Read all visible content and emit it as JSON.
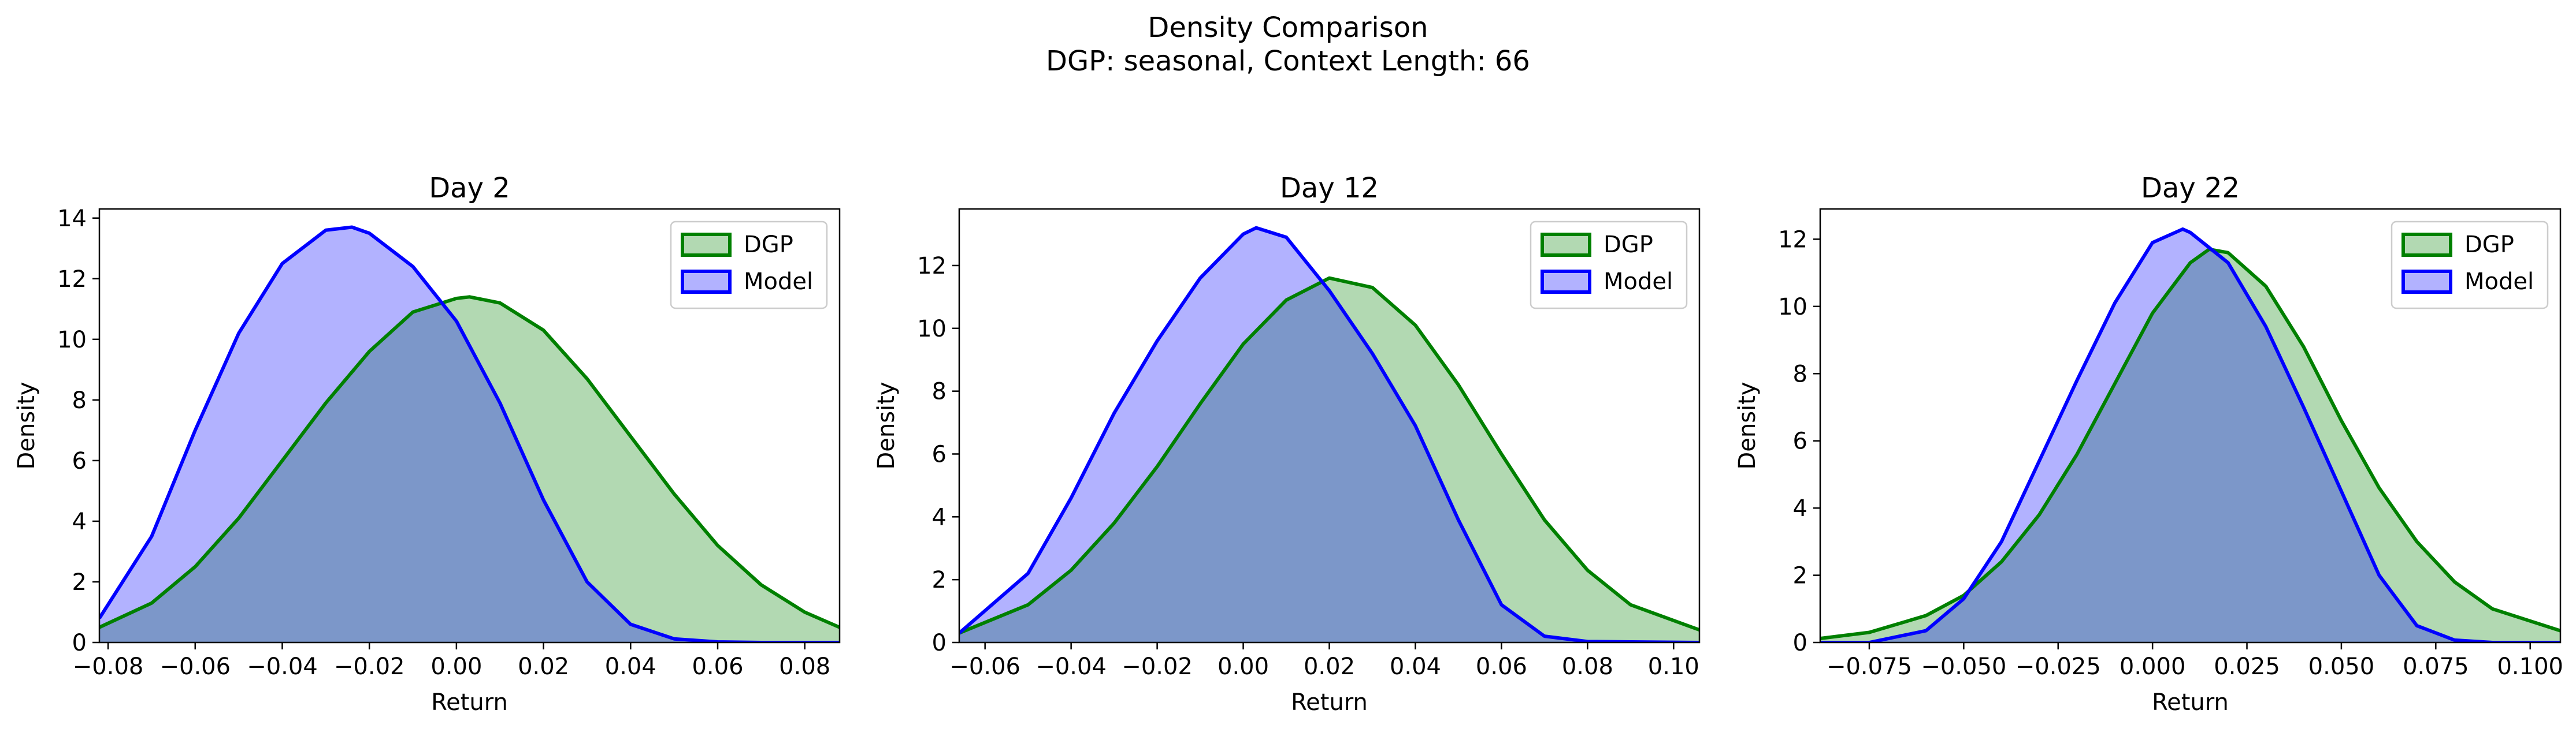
{
  "figure": {
    "title": "Density Comparison",
    "subtitle": "DGP: seasonal, Context Length: 66"
  },
  "colors": {
    "dgp_line": "#008000",
    "dgp_fill": "#008000",
    "model_line": "#0000ff",
    "model_fill": "#0000ff",
    "fill_alpha": 0.3
  },
  "chart_data": [
    {
      "type": "area",
      "title": "Day 2",
      "xlabel": "Return",
      "ylabel": "Density",
      "xlim": [
        -0.082,
        0.088
      ],
      "ylim": [
        0,
        14.3
      ],
      "xticks": [
        -0.08,
        -0.06,
        -0.04,
        -0.02,
        0.0,
        0.02,
        0.04,
        0.06,
        0.08
      ],
      "xtick_labels": [
        "−0.08",
        "−0.06",
        "−0.04",
        "−0.02",
        "0.00",
        "0.02",
        "0.04",
        "0.06",
        "0.08"
      ],
      "yticks": [
        0,
        2,
        4,
        6,
        8,
        10,
        12,
        14
      ],
      "ytick_labels": [
        "0",
        "2",
        "4",
        "6",
        "8",
        "10",
        "12",
        "14"
      ],
      "grid": false,
      "legend": "top-right",
      "series": [
        {
          "name": "DGP",
          "color": "dgp",
          "x": [
            -0.082,
            -0.07,
            -0.06,
            -0.05,
            -0.04,
            -0.03,
            -0.02,
            -0.01,
            0.0,
            0.003,
            0.01,
            0.02,
            0.03,
            0.04,
            0.05,
            0.06,
            0.07,
            0.08,
            0.088
          ],
          "y": [
            0.5,
            1.3,
            2.5,
            4.1,
            6.0,
            7.9,
            9.6,
            10.9,
            11.35,
            11.4,
            11.2,
            10.3,
            8.7,
            6.8,
            4.9,
            3.2,
            1.9,
            1.0,
            0.5
          ]
        },
        {
          "name": "Model",
          "color": "model",
          "x": [
            -0.082,
            -0.07,
            -0.06,
            -0.05,
            -0.04,
            -0.03,
            -0.024,
            -0.02,
            -0.01,
            0.0,
            0.01,
            0.02,
            0.03,
            0.04,
            0.05,
            0.06,
            0.07,
            0.08,
            0.088
          ],
          "y": [
            0.8,
            3.5,
            7.0,
            10.2,
            12.5,
            13.6,
            13.7,
            13.5,
            12.4,
            10.6,
            7.9,
            4.7,
            2.0,
            0.6,
            0.12,
            0.02,
            0.0,
            0.0,
            0.0
          ]
        }
      ]
    },
    {
      "type": "area",
      "title": "Day 12",
      "xlabel": "Return",
      "ylabel": "Density",
      "xlim": [
        -0.066,
        0.106
      ],
      "ylim": [
        0,
        13.8
      ],
      "xticks": [
        -0.06,
        -0.04,
        -0.02,
        0.0,
        0.02,
        0.04,
        0.06,
        0.08,
        0.1
      ],
      "xtick_labels": [
        "−0.06",
        "−0.04",
        "−0.02",
        "0.00",
        "0.02",
        "0.04",
        "0.06",
        "0.08",
        "0.10"
      ],
      "yticks": [
        0,
        2,
        4,
        6,
        8,
        10,
        12
      ],
      "ytick_labels": [
        "0",
        "2",
        "4",
        "6",
        "8",
        "10",
        "12"
      ],
      "grid": false,
      "legend": "top-right",
      "series": [
        {
          "name": "DGP",
          "color": "dgp",
          "x": [
            -0.066,
            -0.05,
            -0.04,
            -0.03,
            -0.02,
            -0.01,
            0.0,
            0.01,
            0.02,
            0.03,
            0.04,
            0.05,
            0.06,
            0.07,
            0.08,
            0.09,
            0.106
          ],
          "y": [
            0.3,
            1.2,
            2.3,
            3.8,
            5.6,
            7.6,
            9.5,
            10.9,
            11.6,
            11.3,
            10.1,
            8.2,
            6.0,
            3.9,
            2.3,
            1.2,
            0.4
          ]
        },
        {
          "name": "Model",
          "color": "model",
          "x": [
            -0.066,
            -0.05,
            -0.04,
            -0.03,
            -0.02,
            -0.01,
            0.0,
            0.003,
            0.01,
            0.02,
            0.03,
            0.04,
            0.05,
            0.06,
            0.07,
            0.08,
            0.106
          ],
          "y": [
            0.3,
            2.2,
            4.6,
            7.3,
            9.6,
            11.6,
            13.0,
            13.2,
            12.9,
            11.2,
            9.2,
            6.9,
            3.9,
            1.2,
            0.2,
            0.03,
            0.0
          ]
        }
      ]
    },
    {
      "type": "area",
      "title": "Day 22",
      "xlabel": "Return",
      "ylabel": "Density",
      "xlim": [
        -0.088,
        0.108
      ],
      "ylim": [
        0,
        12.9
      ],
      "xticks": [
        -0.075,
        -0.05,
        -0.025,
        0.0,
        0.025,
        0.05,
        0.075,
        0.1
      ],
      "xtick_labels": [
        "−0.075",
        "−0.050",
        "−0.025",
        "0.000",
        "0.025",
        "0.050",
        "0.075",
        "0.100"
      ],
      "yticks": [
        0,
        2,
        4,
        6,
        8,
        10,
        12
      ],
      "ytick_labels": [
        "0",
        "2",
        "4",
        "6",
        "8",
        "10",
        "12"
      ],
      "grid": false,
      "legend": "top-right",
      "series": [
        {
          "name": "DGP",
          "color": "dgp",
          "x": [
            -0.088,
            -0.075,
            -0.06,
            -0.05,
            -0.04,
            -0.03,
            -0.02,
            -0.01,
            0.0,
            0.01,
            0.015,
            0.02,
            0.03,
            0.04,
            0.05,
            0.06,
            0.07,
            0.08,
            0.09,
            0.108
          ],
          "y": [
            0.12,
            0.3,
            0.8,
            1.4,
            2.4,
            3.8,
            5.6,
            7.7,
            9.8,
            11.3,
            11.7,
            11.6,
            10.6,
            8.8,
            6.6,
            4.6,
            3.0,
            1.8,
            1.0,
            0.35
          ]
        },
        {
          "name": "Model",
          "color": "model",
          "x": [
            -0.088,
            -0.075,
            -0.06,
            -0.05,
            -0.04,
            -0.03,
            -0.02,
            -0.01,
            0.0,
            0.008,
            0.01,
            0.02,
            0.03,
            0.04,
            0.05,
            0.06,
            0.07,
            0.08,
            0.09,
            0.108
          ],
          "y": [
            0.0,
            0.0,
            0.35,
            1.3,
            3.0,
            5.4,
            7.8,
            10.1,
            11.9,
            12.3,
            12.2,
            11.3,
            9.4,
            7.0,
            4.5,
            2.0,
            0.5,
            0.07,
            0.0,
            0.0
          ]
        }
      ]
    }
  ]
}
